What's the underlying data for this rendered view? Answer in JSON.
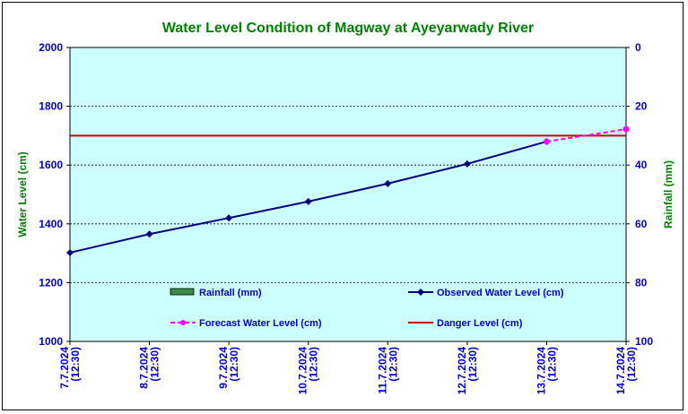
{
  "chart_data": {
    "type": "line",
    "title": "Water Level Condition of Magway at Ayeyarwady River",
    "ylabel": "Water Level (cm)",
    "y2label": "Rainfall (mm)",
    "categories": [
      "7.7.2024 (12:30)",
      "8.7.2024 (12:30)",
      "9.7.2024 (12:30)",
      "10.7.2024 (12:30)",
      "11.7.2024 (12:30)",
      "12.7.2024 (12:30)",
      "13.7.2024 (12:30)",
      "14.7.2024 (12:30)"
    ],
    "ylim": [
      1000,
      2000
    ],
    "yticks": [
      "1000",
      "1200",
      "1400",
      "1600",
      "1800",
      "2000"
    ],
    "y2lim": [
      0,
      100
    ],
    "y2ticks": [
      "0",
      "20",
      "40",
      "60",
      "80",
      "100"
    ],
    "y2_reversed": true,
    "grid": true,
    "series": [
      {
        "name": "Rainfall (mm)",
        "kind": "bar",
        "axis": "right",
        "color": "#3a8a4a",
        "values": [
          0,
          0,
          0,
          0,
          0,
          0,
          0,
          0
        ]
      },
      {
        "name": "Observed Water Level (cm)",
        "kind": "line",
        "color": "#000080",
        "values": [
          1302,
          1365,
          1420,
          1476,
          1537,
          1604,
          1680,
          null
        ]
      },
      {
        "name": "Forecast Water Level (cm)",
        "kind": "dashed",
        "color": "#ff00ff",
        "values": [
          null,
          null,
          null,
          null,
          null,
          null,
          1680,
          1722
        ]
      },
      {
        "name": "Danger Level (cm)",
        "kind": "hline",
        "color": "#cc0000",
        "value": 1700
      }
    ],
    "legend": "inside-bottom",
    "colors": {
      "plot_background": "#ccffff",
      "title": "#008000",
      "ticks": "#0000cc"
    }
  }
}
